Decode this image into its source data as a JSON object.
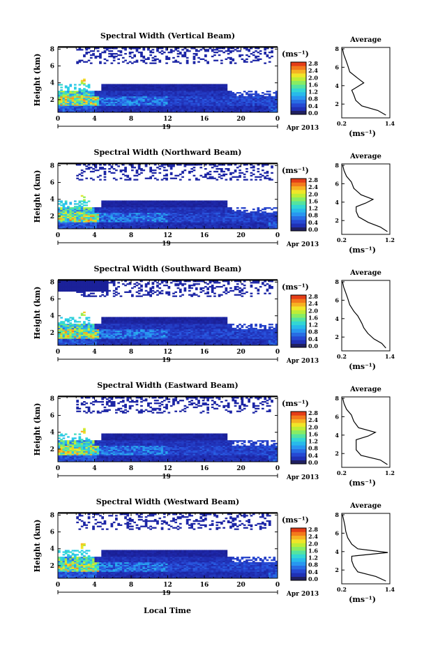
{
  "figure": {
    "x_axis_label": "Local Time",
    "date_label": "Apr 2013",
    "day_label": "19",
    "colorbar_unit": "(ms⁻¹)",
    "avg_title": "Average",
    "avg_xlabel": "(ms⁻¹)",
    "height_label": "Height (km)"
  },
  "chart_data": [
    {
      "type": "heatmap",
      "title": "Spectral Width (Vertical Beam)",
      "xlabel": "Local Time",
      "ylabel": "Height (km)",
      "x_ticks": [
        "0",
        "4",
        "8",
        "12",
        "16",
        "20",
        "0"
      ],
      "y_ticks": [
        "2",
        "4",
        "6",
        "8"
      ],
      "xlim": [
        0,
        24
      ],
      "ylim": [
        0.5,
        8.2
      ],
      "colorbar": {
        "label": "(ms⁻¹)",
        "range": [
          0.0,
          2.8
        ],
        "ticks": [
          "0.0",
          "0.4",
          "0.8",
          "1.2",
          "1.6",
          "2.0",
          "2.4",
          "2.8"
        ]
      },
      "cloud_top_km": 3.8,
      "average_profile": {
        "title": "Average",
        "xlabel": "(ms⁻¹)",
        "xlim": [
          0.2,
          1.4
        ],
        "x_ticks": [
          "0.2",
          "1.4"
        ],
        "ylim": [
          0.5,
          8.0
        ],
        "y_ticks": [
          "2",
          "4",
          "6",
          "8"
        ],
        "x": [
          1.3,
          1.1,
          0.7,
          0.55,
          0.5,
          0.45,
          0.6,
          0.75,
          0.6,
          0.4,
          0.35,
          0.3,
          0.25,
          0.22
        ],
        "y": [
          0.8,
          1.3,
          1.8,
          2.4,
          3.0,
          3.5,
          3.9,
          4.3,
          4.8,
          5.5,
          6.2,
          6.8,
          7.4,
          8.0
        ]
      }
    },
    {
      "type": "heatmap",
      "title": "Spectral Width (Northward Beam)",
      "xlabel": "Local Time",
      "ylabel": "Height (km)",
      "x_ticks": [
        "0",
        "4",
        "8",
        "12",
        "16",
        "20",
        "0"
      ],
      "y_ticks": [
        "2",
        "4",
        "6",
        "8"
      ],
      "xlim": [
        0,
        24
      ],
      "ylim": [
        0.5,
        8.2
      ],
      "colorbar": {
        "label": "(ms⁻¹)",
        "range": [
          0.0,
          2.8
        ],
        "ticks": [
          "0.0",
          "0.4",
          "0.8",
          "1.2",
          "1.6",
          "2.0",
          "2.4",
          "2.8"
        ]
      },
      "cloud_top_km": 3.8,
      "average_profile": {
        "title": "Average",
        "xlabel": "(ms⁻¹)",
        "xlim": [
          0.2,
          1.2
        ],
        "x_ticks": [
          "0.2",
          "1.2"
        ],
        "ylim": [
          0.5,
          8.0
        ],
        "y_ticks": [
          "2",
          "4",
          "6",
          "8"
        ],
        "x": [
          1.15,
          1.0,
          0.75,
          0.55,
          0.5,
          0.5,
          0.7,
          0.85,
          0.6,
          0.45,
          0.4,
          0.3,
          0.25,
          0.22
        ],
        "y": [
          0.8,
          1.3,
          1.8,
          2.4,
          3.0,
          3.5,
          3.9,
          4.3,
          4.8,
          5.5,
          6.2,
          6.8,
          7.4,
          8.0
        ]
      }
    },
    {
      "type": "heatmap",
      "title": "Spectral Width (Southward Beam)",
      "xlabel": "Local Time",
      "ylabel": "Height (km)",
      "x_ticks": [
        "0",
        "4",
        "8",
        "12",
        "16",
        "20",
        "0"
      ],
      "y_ticks": [
        "2",
        "4",
        "6",
        "8"
      ],
      "xlim": [
        0,
        24
      ],
      "ylim": [
        0.5,
        8.2
      ],
      "colorbar": {
        "label": "(ms⁻¹)",
        "range": [
          0.0,
          2.8
        ],
        "ticks": [
          "0.0",
          "0.4",
          "0.8",
          "1.2",
          "1.6",
          "2.0",
          "2.4",
          "2.8"
        ]
      },
      "cloud_top_km": 3.8,
      "average_profile": {
        "title": "Average",
        "xlabel": "(ms⁻¹)",
        "xlim": [
          0.2,
          1.4
        ],
        "x_ticks": [
          "0.2",
          "1.4"
        ],
        "ylim": [
          0.5,
          8.0
        ],
        "y_ticks": [
          "2",
          "4",
          "6",
          "8"
        ],
        "x": [
          1.3,
          1.2,
          1.0,
          0.85,
          0.75,
          0.7,
          0.65,
          0.6,
          0.5,
          0.4,
          0.35,
          0.3,
          0.25,
          0.22
        ],
        "y": [
          0.8,
          1.3,
          1.8,
          2.4,
          3.0,
          3.5,
          3.9,
          4.3,
          4.8,
          5.5,
          6.2,
          6.8,
          7.4,
          8.0
        ]
      }
    },
    {
      "type": "heatmap",
      "title": "Spectral Width (Eastward Beam)",
      "xlabel": "Local Time",
      "ylabel": "Height (km)",
      "x_ticks": [
        "0",
        "4",
        "8",
        "12",
        "16",
        "20",
        "0"
      ],
      "y_ticks": [
        "2",
        "4",
        "6",
        "8"
      ],
      "xlim": [
        0,
        24
      ],
      "ylim": [
        0.5,
        8.2
      ],
      "colorbar": {
        "label": "(ms⁻¹)",
        "range": [
          0.0,
          2.8
        ],
        "ticks": [
          "0.0",
          "0.4",
          "0.8",
          "1.2",
          "1.6",
          "2.0",
          "2.4",
          "2.8"
        ]
      },
      "cloud_top_km": 3.8,
      "average_profile": {
        "title": "Average",
        "xlabel": "(ms⁻¹)",
        "xlim": [
          0.2,
          1.2
        ],
        "x_ticks": [
          "0.2",
          "1.2"
        ],
        "ylim": [
          0.5,
          8.0
        ],
        "y_ticks": [
          "2",
          "4",
          "6",
          "8"
        ],
        "x": [
          1.15,
          1.0,
          0.6,
          0.5,
          0.5,
          0.5,
          0.75,
          0.9,
          0.55,
          0.45,
          0.4,
          0.3,
          0.25,
          0.22
        ],
        "y": [
          0.8,
          1.3,
          1.8,
          2.4,
          3.0,
          3.5,
          3.9,
          4.3,
          4.8,
          5.5,
          6.2,
          6.8,
          7.4,
          8.0
        ]
      }
    },
    {
      "type": "heatmap",
      "title": "Spectral Width (Westward Beam)",
      "xlabel": "Local Time",
      "ylabel": "Height (km)",
      "x_ticks": [
        "0",
        "4",
        "8",
        "12",
        "16",
        "20",
        "0"
      ],
      "y_ticks": [
        "2",
        "4",
        "6",
        "8"
      ],
      "xlim": [
        0,
        24
      ],
      "ylim": [
        0.5,
        8.2
      ],
      "colorbar": {
        "label": "(ms⁻¹)",
        "range": [
          0.0,
          2.8
        ],
        "ticks": [
          "0.0",
          "0.4",
          "0.8",
          "1.2",
          "1.6",
          "2.0",
          "2.4",
          "2.8"
        ]
      },
      "cloud_top_km": 3.8,
      "average_profile": {
        "title": "Average",
        "xlabel": "(ms⁻¹)",
        "xlim": [
          0.2,
          1.4
        ],
        "x_ticks": [
          "0.2",
          "1.4"
        ],
        "ylim": [
          0.5,
          8.0
        ],
        "y_ticks": [
          "2",
          "4",
          "6",
          "8"
        ],
        "x": [
          1.3,
          1.05,
          0.6,
          0.5,
          0.45,
          0.45,
          1.35,
          0.6,
          0.45,
          0.35,
          0.3,
          0.28,
          0.25,
          0.22
        ],
        "y": [
          0.8,
          1.3,
          1.8,
          2.4,
          3.0,
          3.5,
          3.9,
          4.3,
          4.8,
          5.5,
          6.2,
          6.8,
          7.4,
          8.0
        ]
      }
    }
  ]
}
